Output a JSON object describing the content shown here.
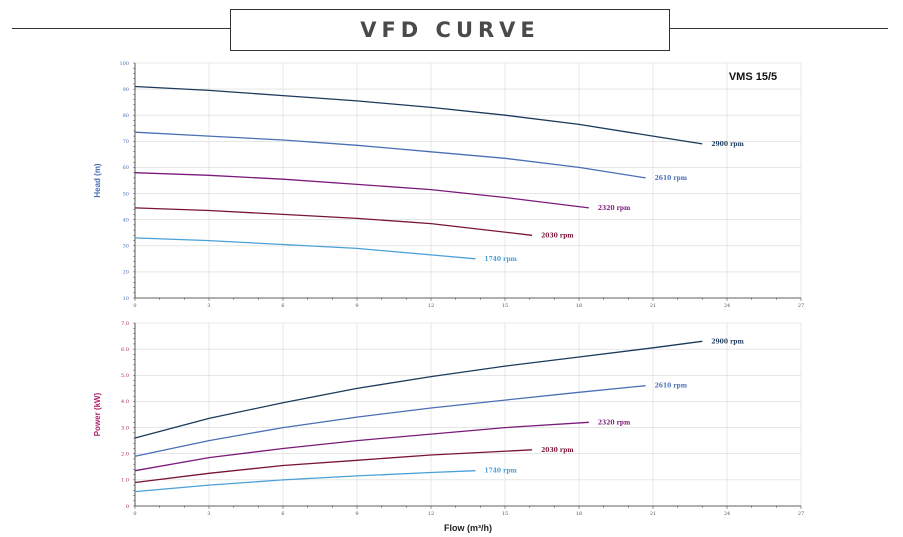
{
  "title": "VFD CURVE",
  "model": "VMS 15/5",
  "chart_data": [
    {
      "type": "line",
      "name_panel": "head",
      "ylabel": "Head (m)",
      "xlabel": "",
      "xlim": [
        0,
        27
      ],
      "ylim": [
        10,
        100
      ],
      "xticks": [
        0,
        3,
        6,
        9,
        12,
        15,
        18,
        21,
        24,
        27
      ],
      "yticks": [
        10,
        20,
        30,
        40,
        50,
        60,
        70,
        80,
        90,
        100
      ],
      "grid": true,
      "series": [
        {
          "name": "2900 rpm",
          "color": "#1b3a5c",
          "x": [
            0,
            3,
            6,
            9,
            12,
            15,
            18,
            21,
            23
          ],
          "y": [
            91,
            89.5,
            87.5,
            85.5,
            83,
            80,
            76.5,
            72,
            69
          ]
        },
        {
          "name": "2610 rpm",
          "color": "#4a6fb5",
          "x": [
            0,
            3,
            6,
            9,
            12,
            15,
            18,
            20.7
          ],
          "y": [
            73.5,
            72,
            70.5,
            68.5,
            66,
            63.5,
            60,
            56
          ]
        },
        {
          "name": "2320 rpm",
          "color": "#7b1a7b",
          "x": [
            0,
            3,
            6,
            9,
            12,
            15,
            18.4
          ],
          "y": [
            58,
            57,
            55.5,
            53.5,
            51.5,
            48.5,
            44.5
          ]
        },
        {
          "name": "2030 rpm",
          "color": "#7a1436",
          "x": [
            0,
            3,
            6,
            9,
            12,
            16.1
          ],
          "y": [
            44.5,
            43.5,
            42,
            40.5,
            38.5,
            34
          ]
        },
        {
          "name": "1740 rpm",
          "color": "#4aa0d8",
          "x": [
            0,
            3,
            6,
            9,
            12,
            13.8
          ],
          "y": [
            33,
            32,
            30.5,
            29,
            26.5,
            25
          ]
        }
      ]
    },
    {
      "type": "line",
      "name_panel": "power",
      "ylabel": "Power (kW)",
      "xlabel": "Flow (m³/h)",
      "xlim": [
        0,
        27
      ],
      "ylim": [
        0,
        7
      ],
      "xticks": [
        0,
        3,
        6,
        9,
        12,
        15,
        18,
        21,
        24,
        27
      ],
      "yticks": [
        0,
        1,
        2,
        3,
        4,
        5,
        6,
        7
      ],
      "ytick_labels": [
        "0",
        "1.0",
        "2.0",
        "3.0",
        "4.0",
        "5.0",
        "6.0",
        "7.0"
      ],
      "grid": true,
      "series": [
        {
          "name": "2900 rpm",
          "color": "#1b3a5c",
          "x": [
            0,
            3,
            6,
            9,
            12,
            15,
            18,
            21,
            23
          ],
          "y": [
            2.6,
            3.35,
            3.95,
            4.5,
            4.95,
            5.35,
            5.7,
            6.05,
            6.3
          ]
        },
        {
          "name": "2610 rpm",
          "color": "#4a6fb5",
          "x": [
            0,
            3,
            6,
            9,
            12,
            15,
            18,
            20.7
          ],
          "y": [
            1.9,
            2.5,
            3.0,
            3.4,
            3.75,
            4.05,
            4.35,
            4.6
          ]
        },
        {
          "name": "2320 rpm",
          "color": "#7b1a7b",
          "x": [
            0,
            3,
            6,
            9,
            12,
            15,
            18.4
          ],
          "y": [
            1.35,
            1.85,
            2.2,
            2.5,
            2.75,
            3.0,
            3.2
          ]
        },
        {
          "name": "2030 rpm",
          "color": "#7a1436",
          "x": [
            0,
            3,
            6,
            9,
            12,
            16.1
          ],
          "y": [
            0.9,
            1.25,
            1.55,
            1.75,
            1.95,
            2.15
          ]
        },
        {
          "name": "1740 rpm",
          "color": "#4aa0d8",
          "x": [
            0,
            3,
            6,
            9,
            12,
            13.8
          ],
          "y": [
            0.55,
            0.8,
            1.0,
            1.15,
            1.28,
            1.35
          ]
        }
      ]
    }
  ]
}
